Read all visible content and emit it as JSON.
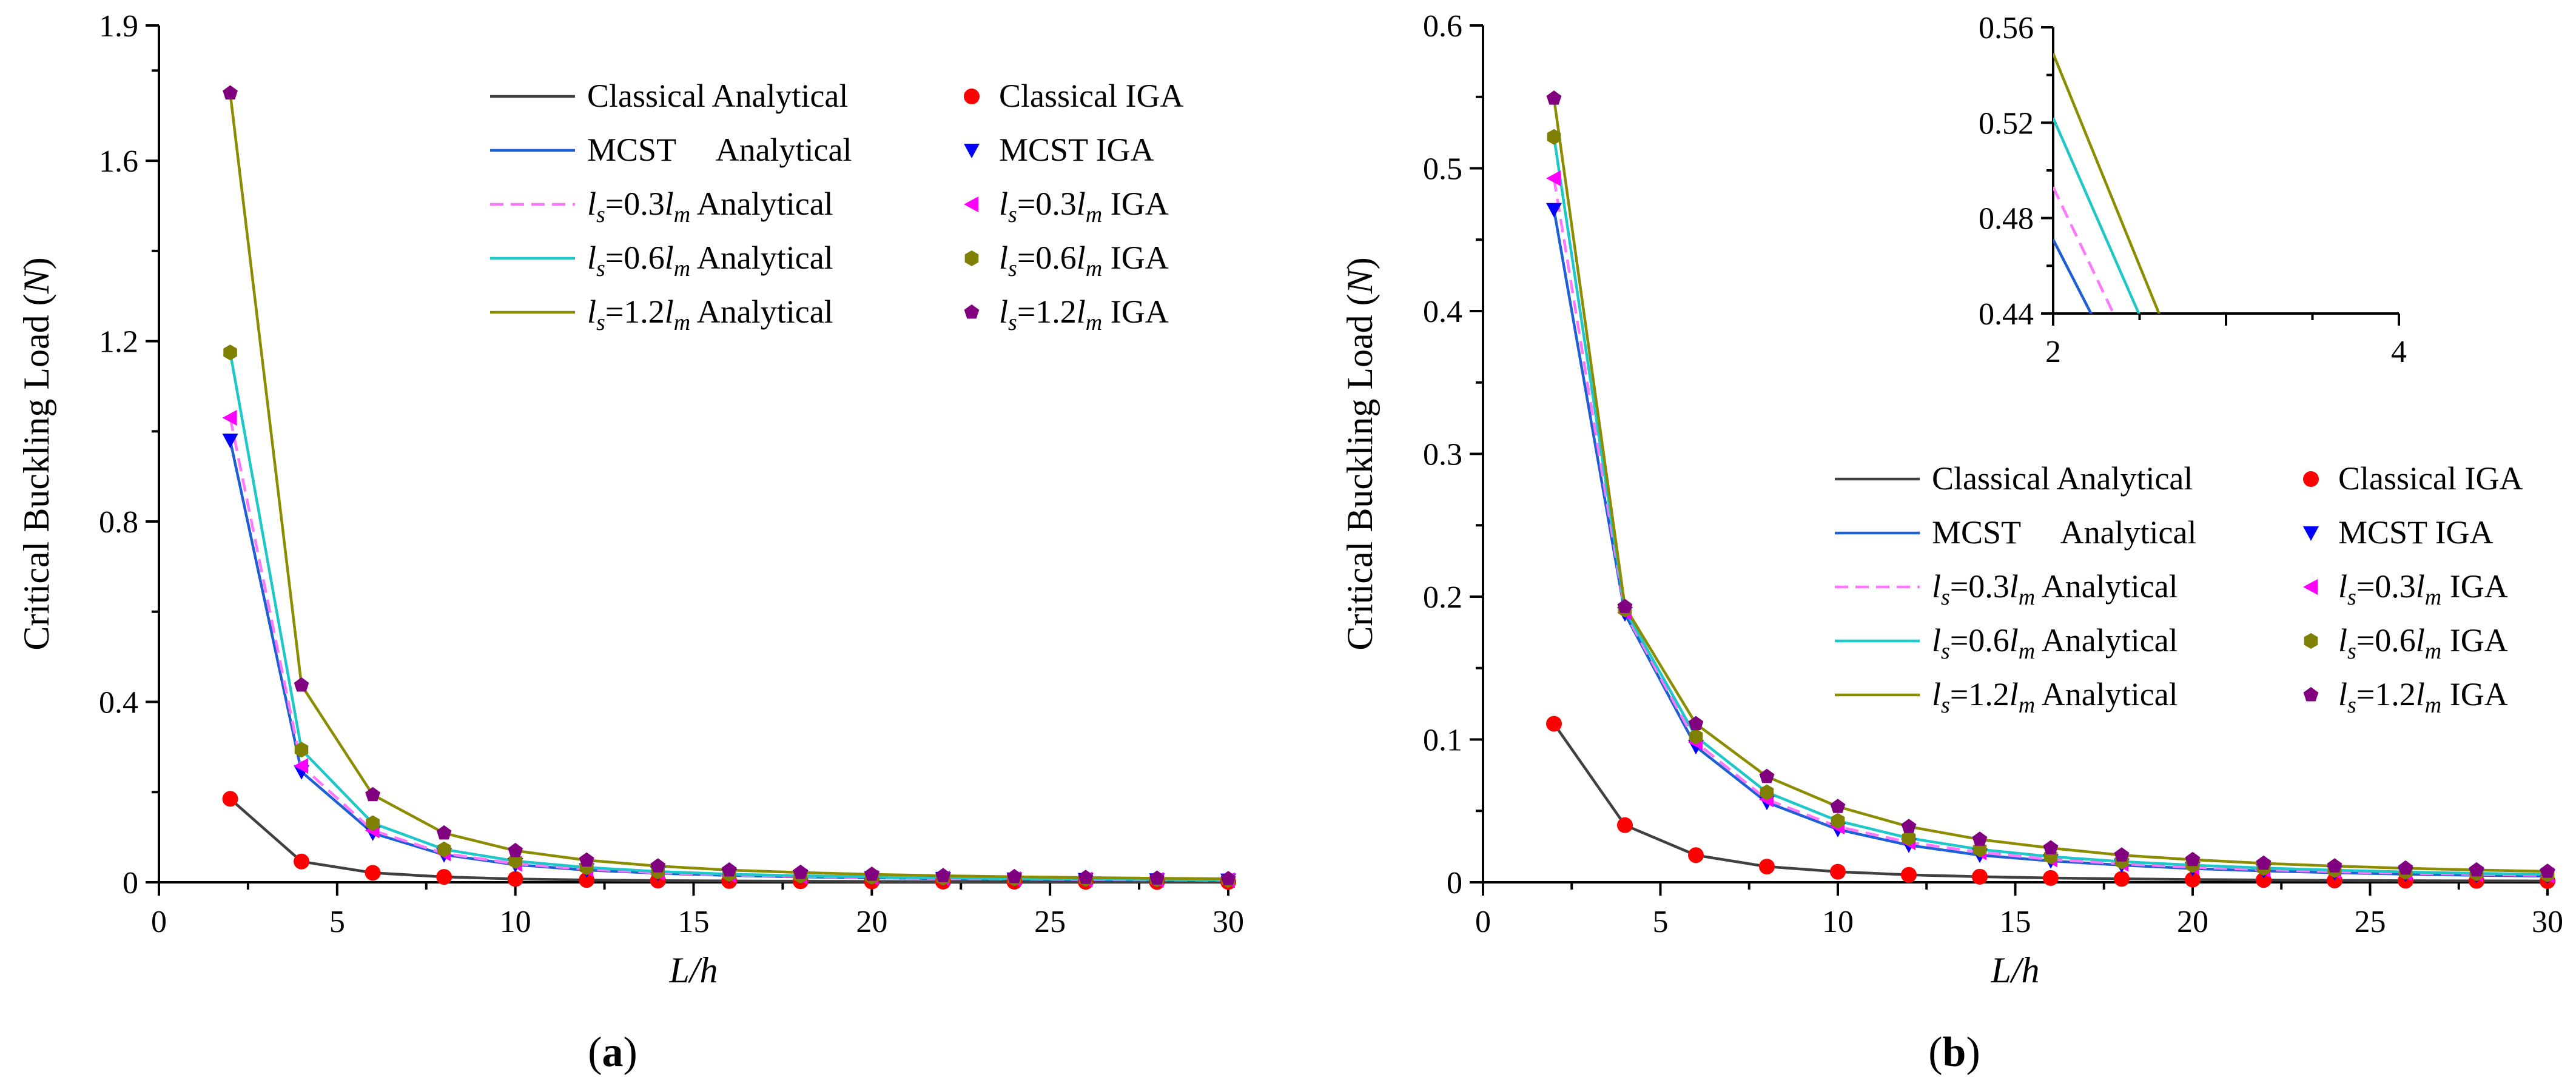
{
  "chart_data": [
    {
      "panel": "a",
      "type": "line",
      "caption": "a",
      "xlabel": "L/h",
      "ylabel": "Critical Buckling Load",
      "ylabel_unit": "N",
      "xlim": [
        0,
        30
      ],
      "ylim": [
        0,
        1.9
      ],
      "xticks": [
        "0",
        "5",
        "10",
        "15",
        "20",
        "25",
        "30"
      ],
      "yticks": [
        "0",
        "0.4",
        "0.8",
        "1.2",
        "1.6",
        "1.9"
      ],
      "x": [
        2,
        4,
        6,
        8,
        10,
        12,
        14,
        16,
        18,
        20,
        22,
        24,
        26,
        28,
        30
      ],
      "series": [
        {
          "key": "classical",
          "name": "Classical",
          "color": "#404040",
          "dashed": false,
          "marker": "circle",
          "marker_color": "#ff0000",
          "values": [
            0.185,
            0.046,
            0.021,
            0.012,
            0.0074,
            0.0051,
            0.0038,
            0.0029,
            0.0023,
            0.0019,
            0.0015,
            0.0013,
            0.0011,
            0.0009,
            0.0008
          ]
        },
        {
          "key": "mcst",
          "name": "MCST",
          "color": "#1f5fd6",
          "dashed": false,
          "marker": "tri-down",
          "marker_color": "#0000ff",
          "values": [
            0.98,
            0.245,
            0.109,
            0.061,
            0.039,
            0.027,
            0.02,
            0.015,
            0.012,
            0.0098,
            0.0081,
            0.0068,
            0.0058,
            0.005,
            0.0044
          ]
        },
        {
          "key": "s03",
          "name": "ls=0.3lm",
          "color": "#ff77ff",
          "dashed": true,
          "marker": "tri-left",
          "marker_color": "#ff00ff",
          "values": [
            1.03,
            0.258,
            0.115,
            0.064,
            0.041,
            0.029,
            0.021,
            0.016,
            0.013,
            0.0103,
            0.0085,
            0.0072,
            0.0061,
            0.0053,
            0.0046
          ]
        },
        {
          "key": "s06",
          "name": "ls=0.6lm",
          "color": "#1ec8c8",
          "dashed": false,
          "marker": "hexagon",
          "marker_color": "#7f7f00",
          "values": [
            1.175,
            0.294,
            0.131,
            0.073,
            0.047,
            0.033,
            0.024,
            0.018,
            0.0145,
            0.0118,
            0.0097,
            0.0082,
            0.007,
            0.006,
            0.0052
          ]
        },
        {
          "key": "s12",
          "name": "ls=1.2lm",
          "color": "#8c8c00",
          "dashed": false,
          "marker": "pentagon",
          "marker_color": "#800080",
          "values": [
            1.75,
            0.437,
            0.194,
            0.109,
            0.07,
            0.049,
            0.036,
            0.027,
            0.0216,
            0.0175,
            0.0145,
            0.0122,
            0.0104,
            0.0089,
            0.0078
          ]
        }
      ]
    },
    {
      "panel": "b",
      "type": "line",
      "caption": "b",
      "xlabel": "L/h",
      "ylabel": "Critical Buckling Load",
      "ylabel_unit": "N",
      "xlim": [
        0,
        30
      ],
      "ylim": [
        0,
        0.6
      ],
      "xticks": [
        "0",
        "5",
        "10",
        "15",
        "20",
        "25",
        "30"
      ],
      "yticks": [
        "0",
        "0.1",
        "0.2",
        "0.3",
        "0.4",
        "0.5",
        "0.6"
      ],
      "x": [
        2,
        4,
        6,
        8,
        10,
        12,
        14,
        16,
        18,
        20,
        22,
        24,
        26,
        28,
        30
      ],
      "series": [
        {
          "key": "classical",
          "name": "Classical",
          "color": "#404040",
          "dashed": false,
          "marker": "circle",
          "marker_color": "#ff0000",
          "values": [
            0.111,
            0.04,
            0.019,
            0.011,
            0.0074,
            0.0052,
            0.0039,
            0.003,
            0.0024,
            0.0019,
            0.0016,
            0.0013,
            0.0011,
            0.001,
            0.0009
          ]
        },
        {
          "key": "mcst",
          "name": "MCST",
          "color": "#1f5fd6",
          "dashed": false,
          "marker": "tri-down",
          "marker_color": "#0000ff",
          "values": [
            0.471,
            0.188,
            0.095,
            0.056,
            0.037,
            0.026,
            0.019,
            0.015,
            0.012,
            0.0096,
            0.008,
            0.0067,
            0.0057,
            0.0049,
            0.0043
          ]
        },
        {
          "key": "s03",
          "name": "ls=0.3lm",
          "color": "#ff77ff",
          "dashed": true,
          "marker": "tri-left",
          "marker_color": "#ff00ff",
          "values": [
            0.493,
            0.189,
            0.098,
            0.058,
            0.039,
            0.028,
            0.021,
            0.016,
            0.013,
            0.0105,
            0.0088,
            0.0074,
            0.0063,
            0.0055,
            0.0048
          ]
        },
        {
          "key": "s06",
          "name": "ls=0.6lm",
          "color": "#1ec8c8",
          "dashed": false,
          "marker": "hexagon",
          "marker_color": "#7f7f00",
          "values": [
            0.522,
            0.191,
            0.102,
            0.063,
            0.043,
            0.031,
            0.023,
            0.018,
            0.0145,
            0.012,
            0.01,
            0.0085,
            0.0072,
            0.0063,
            0.0055
          ]
        },
        {
          "key": "s12",
          "name": "ls=1.2lm",
          "color": "#8c8c00",
          "dashed": false,
          "marker": "pentagon",
          "marker_color": "#800080",
          "values": [
            0.549,
            0.193,
            0.111,
            0.074,
            0.053,
            0.039,
            0.03,
            0.024,
            0.019,
            0.0158,
            0.0133,
            0.0114,
            0.0098,
            0.0086,
            0.0076
          ]
        }
      ],
      "inset": {
        "xlim": [
          2,
          4
        ],
        "ylim": [
          0.44,
          0.56
        ],
        "xticks": [
          "2",
          "4"
        ],
        "yticks": [
          "0.44",
          "0.48",
          "0.52",
          "0.56"
        ]
      }
    }
  ],
  "legend": {
    "line_suffix": "Analytical",
    "marker_suffix": "IGA",
    "classical_label": "Classical",
    "mcst_label": "MCST",
    "ls_symbol": "l",
    "ls_sub": "s",
    "lm_sub": "m",
    "coef_03": "=0.3",
    "coef_06": "=0.6",
    "coef_12": "=1.2"
  }
}
